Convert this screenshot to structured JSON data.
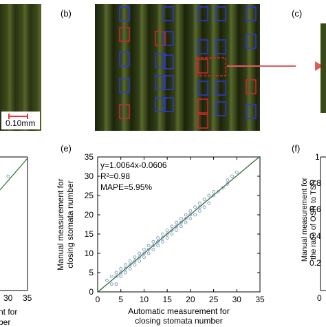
{
  "panels": {
    "b_label": "(b)",
    "c_label": "(c)",
    "e_label": "(e)",
    "f_label": "(f)"
  },
  "scale_bar": {
    "text": "0.10mm"
  },
  "left_fragment": {
    "xticks": [
      "30",
      "35"
    ],
    "xlabel_tail": [
      "nt for",
      "ber"
    ],
    "line_color": "#2e6b2e"
  },
  "right_fragment": {
    "ylabel": [
      "Manual measurement for",
      "the ratio of OSN to TSN"
    ],
    "yticks": [
      "1",
      "0.8",
      "0.6",
      "0.4",
      "0.2"
    ],
    "xtick0": "0"
  },
  "colors": {
    "open_box": "#2a3bd8",
    "closed_box": "#d8262a",
    "arrow": "#e35a5a",
    "fit_line": "#2e6b2e",
    "point": "#6b8db5"
  },
  "chart_data": {
    "type": "scatter",
    "title": "",
    "xlabel": [
      "Automatic measurement for",
      "closing stomata number"
    ],
    "ylabel": [
      "Manual measurement for",
      "closing stomata number"
    ],
    "xlim": [
      0,
      35
    ],
    "ylim": [
      0,
      35
    ],
    "xticks": [
      "0",
      "5",
      "10",
      "15",
      "20",
      "25",
      "30",
      "35"
    ],
    "yticks": [
      "0",
      "5",
      "10",
      "15",
      "20",
      "25",
      "30",
      "35"
    ],
    "annotations": [
      "y=1.0064x-0.0606",
      "R²=0.98",
      "MAPE=5.95%"
    ],
    "fit": {
      "slope": 1.0064,
      "intercept": -0.0606
    },
    "grid": false,
    "points": [
      [
        2,
        3
      ],
      [
        3,
        2
      ],
      [
        3,
        4
      ],
      [
        4,
        4
      ],
      [
        4,
        2
      ],
      [
        4,
        5
      ],
      [
        5,
        4
      ],
      [
        5,
        6
      ],
      [
        5,
        5
      ],
      [
        6,
        6
      ],
      [
        6,
        7
      ],
      [
        6,
        5
      ],
      [
        7,
        6
      ],
      [
        7,
        8
      ],
      [
        7,
        7
      ],
      [
        8,
        7
      ],
      [
        8,
        9
      ],
      [
        8,
        8
      ],
      [
        9,
        10
      ],
      [
        9,
        8
      ],
      [
        9,
        9
      ],
      [
        10,
        11
      ],
      [
        10,
        9
      ],
      [
        10,
        10
      ],
      [
        11,
        12
      ],
      [
        11,
        10
      ],
      [
        11,
        11
      ],
      [
        12,
        13
      ],
      [
        12,
        11
      ],
      [
        12,
        12
      ],
      [
        13,
        14
      ],
      [
        13,
        12
      ],
      [
        13,
        13
      ],
      [
        14,
        15
      ],
      [
        14,
        13
      ],
      [
        14,
        14
      ],
      [
        15,
        16
      ],
      [
        15,
        14
      ],
      [
        15,
        15
      ],
      [
        16,
        17
      ],
      [
        16,
        15
      ],
      [
        16,
        16
      ],
      [
        17,
        18
      ],
      [
        17,
        16
      ],
      [
        17,
        17
      ],
      [
        18,
        19
      ],
      [
        18,
        17
      ],
      [
        18,
        18
      ],
      [
        19,
        20
      ],
      [
        19,
        18
      ],
      [
        19,
        19
      ],
      [
        20,
        21
      ],
      [
        20,
        19
      ],
      [
        20,
        20
      ],
      [
        21,
        22
      ],
      [
        21,
        20
      ],
      [
        22,
        23
      ],
      [
        22,
        21
      ],
      [
        22,
        22
      ],
      [
        23,
        24
      ],
      [
        23,
        22
      ],
      [
        24,
        25
      ],
      [
        24,
        23
      ],
      [
        25,
        25
      ],
      [
        25,
        26
      ],
      [
        26,
        26
      ],
      [
        27,
        27
      ],
      [
        28,
        29
      ],
      [
        28,
        28
      ],
      [
        29,
        30
      ],
      [
        30,
        31
      ]
    ]
  }
}
